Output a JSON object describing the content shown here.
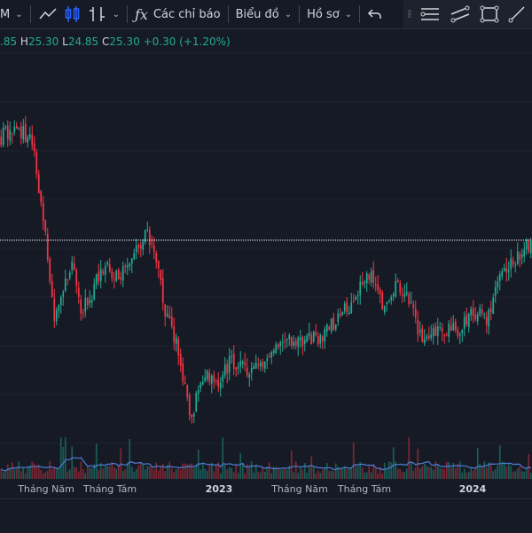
{
  "toolbar": {
    "interval_label": "M",
    "indicators_label": "Các chỉ báo",
    "chart_label": "Biểu đồ",
    "profile_label": "Hồ sơ"
  },
  "ohlc": {
    "o": ".85",
    "h_label": "H",
    "h": "25.30",
    "l_label": "L",
    "l": "24.85",
    "c_label": "C",
    "c": "25.30",
    "change": "+0.30 (+1.20%)"
  },
  "colors": {
    "background": "#161a25",
    "up": "#22ab94",
    "down": "#f23645",
    "volume_ma": "#4d7dd6",
    "price_line": "#ffffff"
  },
  "chart_data": {
    "type": "candlestick",
    "x_tick_labels": [
      "Tháng Năm",
      "Tháng Tám",
      "2023",
      "Tháng Năm",
      "Tháng Tám",
      "2024"
    ],
    "price_line": 25.3,
    "ylim": [
      14,
      36
    ],
    "series": [
      {
        "values": [
          [
            0.0,
            31.0
          ],
          [
            0.03,
            31.6
          ],
          [
            0.06,
            30.5
          ],
          [
            0.08,
            26.5
          ],
          [
            0.1,
            21.0
          ],
          [
            0.115,
            22.5
          ],
          [
            0.135,
            24.3
          ],
          [
            0.15,
            21.5
          ],
          [
            0.165,
            22.0
          ],
          [
            0.18,
            23.0
          ],
          [
            0.2,
            23.8
          ],
          [
            0.22,
            23.3
          ],
          [
            0.25,
            24.3
          ],
          [
            0.265,
            25.2
          ],
          [
            0.275,
            25.7
          ],
          [
            0.29,
            25.0
          ],
          [
            0.3,
            23.3
          ],
          [
            0.31,
            21.2
          ],
          [
            0.33,
            19.7
          ],
          [
            0.35,
            16.5
          ],
          [
            0.36,
            15.3
          ],
          [
            0.37,
            17.0
          ],
          [
            0.39,
            18.0
          ],
          [
            0.41,
            17.2
          ],
          [
            0.43,
            18.6
          ],
          [
            0.455,
            18.2
          ],
          [
            0.48,
            18.4
          ],
          [
            0.51,
            19.0
          ],
          [
            0.53,
            19.8
          ],
          [
            0.56,
            19.5
          ],
          [
            0.585,
            19.8
          ],
          [
            0.61,
            20.2
          ],
          [
            0.635,
            21.0
          ],
          [
            0.66,
            21.8
          ],
          [
            0.675,
            22.8
          ],
          [
            0.69,
            23.6
          ],
          [
            0.705,
            23.0
          ],
          [
            0.72,
            21.5
          ],
          [
            0.735,
            22.5
          ],
          [
            0.755,
            22.9
          ],
          [
            0.77,
            21.8
          ],
          [
            0.785,
            20.6
          ],
          [
            0.8,
            19.6
          ],
          [
            0.815,
            20.0
          ],
          [
            0.84,
            20.5
          ],
          [
            0.86,
            20.2
          ],
          [
            0.88,
            20.9
          ],
          [
            0.9,
            21.5
          ],
          [
            0.92,
            21.0
          ],
          [
            0.94,
            23.2
          ],
          [
            0.96,
            24.0
          ],
          [
            0.98,
            24.4
          ],
          [
            1.0,
            25.3
          ]
        ]
      }
    ]
  }
}
